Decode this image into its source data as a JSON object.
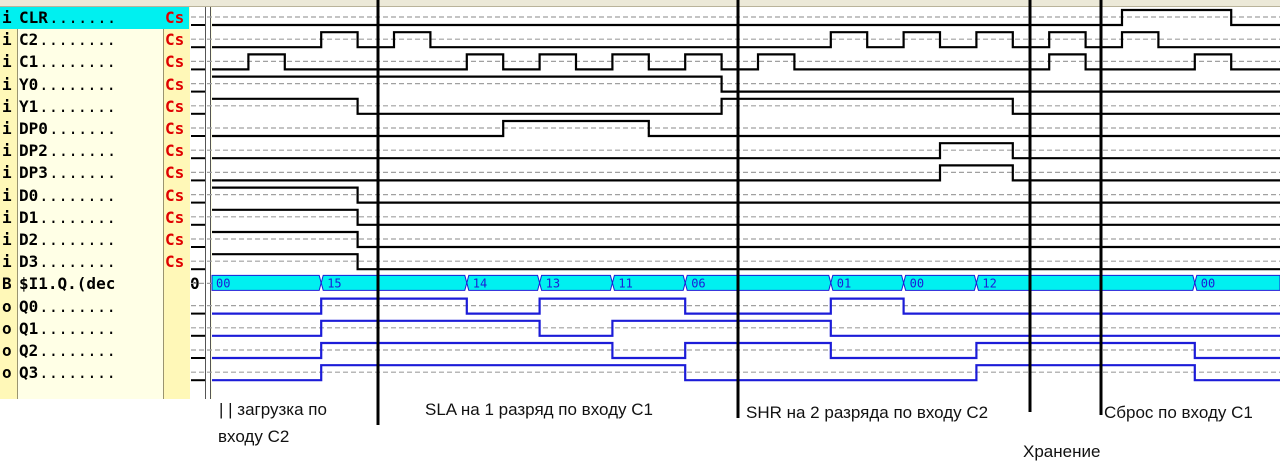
{
  "colors": {
    "input_wave": "#000000",
    "output_wave": "#1c1cd8",
    "bus_fill": "#00f0f0",
    "bus_text": "#1c1cd8",
    "selected_row": "#00f0f0",
    "cs_text": "#e00000"
  },
  "signals": [
    {
      "prefix": "i",
      "name": "CLR",
      "dots": ".......",
      "cs": "Cs",
      "kind": "input",
      "selected": true,
      "highs": [
        [
          25,
          28
        ]
      ]
    },
    {
      "prefix": "i",
      "name": "C2",
      "dots": "........",
      "cs": "Cs",
      "kind": "input",
      "highs": [
        [
          3,
          4
        ],
        [
          5,
          6
        ],
        [
          17,
          18
        ],
        [
          19,
          20
        ],
        [
          21,
          22
        ],
        [
          23,
          24
        ],
        [
          25,
          26
        ]
      ]
    },
    {
      "prefix": "i",
      "name": "C1",
      "dots": "........",
      "cs": "Cs",
      "kind": "input",
      "highs": [
        [
          1,
          2
        ],
        [
          7,
          8
        ],
        [
          9,
          10
        ],
        [
          11,
          12
        ],
        [
          13,
          14
        ],
        [
          15,
          16
        ],
        [
          23,
          24
        ],
        [
          27,
          28
        ]
      ]
    },
    {
      "prefix": "i",
      "name": "Y0",
      "dots": "........",
      "cs": "Cs",
      "kind": "input",
      "highs": [
        [
          0,
          14
        ]
      ]
    },
    {
      "prefix": "i",
      "name": "Y1",
      "dots": "........",
      "cs": "Cs",
      "kind": "input",
      "highs": [
        [
          0,
          4
        ],
        [
          14,
          22
        ]
      ]
    },
    {
      "prefix": "i",
      "name": "DP0",
      "dots": ".......",
      "cs": "Cs",
      "kind": "input",
      "highs": [
        [
          8,
          12
        ]
      ]
    },
    {
      "prefix": "i",
      "name": "DP2",
      "dots": ".......",
      "cs": "Cs",
      "kind": "input",
      "highs": [
        [
          20,
          22
        ]
      ]
    },
    {
      "prefix": "i",
      "name": "DP3",
      "dots": ".......",
      "cs": "Cs",
      "kind": "input",
      "highs": [
        [
          20,
          22
        ]
      ]
    },
    {
      "prefix": "i",
      "name": "D0",
      "dots": "........",
      "cs": "Cs",
      "kind": "input",
      "highs": [
        [
          0,
          4
        ]
      ]
    },
    {
      "prefix": "i",
      "name": "D1",
      "dots": "........",
      "cs": "Cs",
      "kind": "input",
      "highs": [
        [
          0,
          4
        ]
      ]
    },
    {
      "prefix": "i",
      "name": "D2",
      "dots": "........",
      "cs": "Cs",
      "kind": "input",
      "highs": [
        [
          0,
          4
        ]
      ]
    },
    {
      "prefix": "i",
      "name": "D3",
      "dots": "........",
      "cs": "Cs",
      "kind": "input",
      "highs": [
        [
          0,
          4
        ]
      ]
    },
    {
      "prefix": "B",
      "name": "$I1.Q.(dec",
      "dots": "",
      "cs": "",
      "value": "0",
      "kind": "bus",
      "segments": [
        {
          "t": 0,
          "v": "00"
        },
        {
          "t": 3,
          "v": "15"
        },
        {
          "t": 7,
          "v": "14"
        },
        {
          "t": 9,
          "v": "13"
        },
        {
          "t": 11,
          "v": "11"
        },
        {
          "t": 13,
          "v": "06"
        },
        {
          "t": 17,
          "v": "01"
        },
        {
          "t": 19,
          "v": "00"
        },
        {
          "t": 21,
          "v": "12"
        },
        {
          "t": 27,
          "v": "00"
        }
      ]
    },
    {
      "prefix": "o",
      "name": "Q0",
      "dots": "........",
      "cs": "",
      "kind": "output",
      "highs": [
        [
          3,
          7
        ],
        [
          9,
          13
        ],
        [
          17,
          19
        ]
      ]
    },
    {
      "prefix": "o",
      "name": "Q1",
      "dots": "........",
      "cs": "",
      "kind": "output",
      "highs": [
        [
          3,
          9
        ],
        [
          11,
          17
        ]
      ]
    },
    {
      "prefix": "o",
      "name": "Q2",
      "dots": "........",
      "cs": "",
      "kind": "output",
      "highs": [
        [
          3,
          11
        ],
        [
          13,
          17
        ],
        [
          21,
          27
        ]
      ]
    },
    {
      "prefix": "o",
      "name": "Q3",
      "dots": "........",
      "cs": "",
      "kind": "output",
      "highs": [
        [
          3,
          13
        ],
        [
          21,
          27
        ]
      ]
    }
  ],
  "time_steps": 30,
  "markers": [
    {
      "label": "| | загрузка по",
      "label2": "входу C2"
    },
    {
      "label": "SLA на 1 разряд по входу C1"
    },
    {
      "label": "SHR на 2 разряда по входу C2"
    },
    {
      "label": "Хранение"
    },
    {
      "label": "Сброс по входу C1"
    }
  ]
}
